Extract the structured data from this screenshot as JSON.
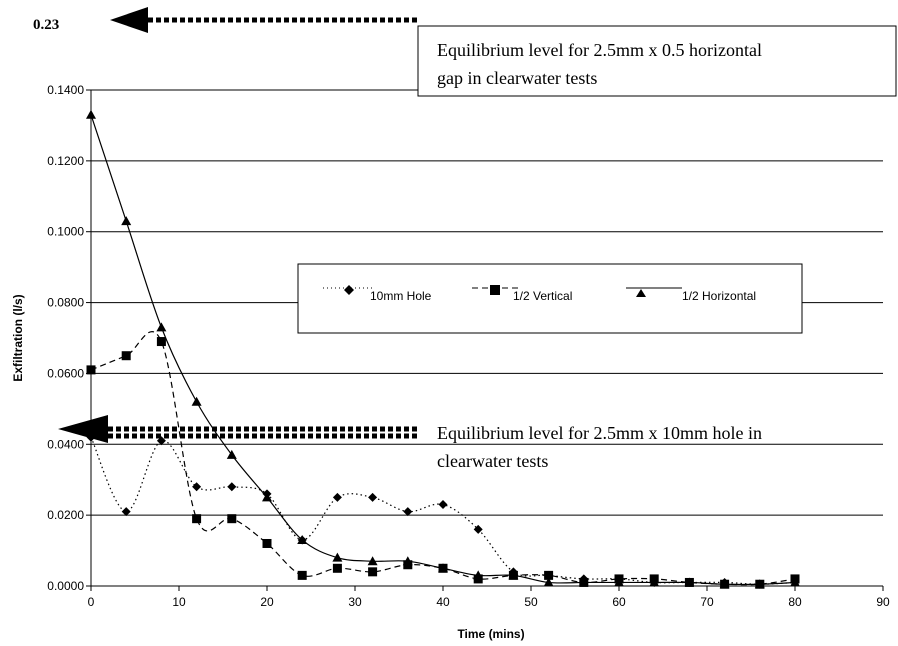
{
  "chart_data": {
    "type": "line",
    "xlabel": "Time (mins)",
    "ylabel": "Exfiltration (l/s)",
    "xlim": [
      0,
      90
    ],
    "ylim": [
      0,
      0.14
    ],
    "x_ticks": [
      "0",
      "10",
      "20",
      "30",
      "40",
      "50",
      "60",
      "70",
      "80",
      "90"
    ],
    "y_ticks": [
      "0.0000",
      "0.0200",
      "0.0400",
      "0.0600",
      "0.0800",
      "0.1000",
      "0.1200",
      "0.1400"
    ],
    "grid": "horizontal",
    "legend_position": "center-right",
    "series": [
      {
        "name": "10mm Hole",
        "marker": "diamond",
        "line_style": "dotted",
        "x": [
          0,
          4,
          8,
          12,
          16,
          20,
          24,
          28,
          32,
          36,
          40,
          44,
          48,
          52,
          56,
          60,
          64,
          68,
          72,
          76,
          80
        ],
        "values": [
          0.042,
          0.021,
          0.041,
          0.028,
          0.028,
          0.026,
          0.013,
          0.025,
          0.025,
          0.021,
          0.023,
          0.016,
          0.004,
          0.003,
          0.002,
          0.002,
          0.001,
          0.001,
          0.001,
          0.0005,
          0.001
        ]
      },
      {
        "name": "1/2 Vertical",
        "marker": "square",
        "line_style": "dashed",
        "x": [
          0,
          4,
          8,
          12,
          16,
          20,
          24,
          28,
          32,
          36,
          40,
          44,
          48,
          52,
          56,
          60,
          64,
          68,
          72,
          76,
          80
        ],
        "values": [
          0.061,
          0.065,
          0.069,
          0.019,
          0.019,
          0.012,
          0.003,
          0.005,
          0.004,
          0.006,
          0.005,
          0.002,
          0.003,
          0.003,
          0.001,
          0.002,
          0.002,
          0.001,
          0.0005,
          0.0005,
          0.002
        ]
      },
      {
        "name": "1/2 Horizontal",
        "marker": "triangle",
        "line_style": "solid",
        "x": [
          0,
          4,
          8,
          12,
          16,
          20,
          24,
          28,
          32,
          36,
          40,
          44,
          48,
          52,
          56,
          60,
          64,
          68,
          72,
          76,
          80
        ],
        "values": [
          0.133,
          0.103,
          0.073,
          0.052,
          0.037,
          0.025,
          0.013,
          0.008,
          0.007,
          0.007,
          0.005,
          0.003,
          0.003,
          0.001,
          0.001,
          0.001,
          0.001,
          0.001,
          0.0005,
          0.0005,
          0.001
        ]
      }
    ],
    "annotations": [
      {
        "text": "Equilibrium level for 2.5mm x 0.5 horizontal gap in clearwater tests",
        "line1": "Equilibrium level for 2.5mm x 0.5 horizontal",
        "line2": "gap in clearwater tests",
        "value": 0.23,
        "value_label": "0.23"
      },
      {
        "text": "Equilibrium level for 2.5mm x 10mm hole in clearwater tests",
        "line1": "Equilibrium level for 2.5mm x 10mm hole in",
        "line2": "clearwater tests",
        "value": 0.0435
      }
    ]
  }
}
